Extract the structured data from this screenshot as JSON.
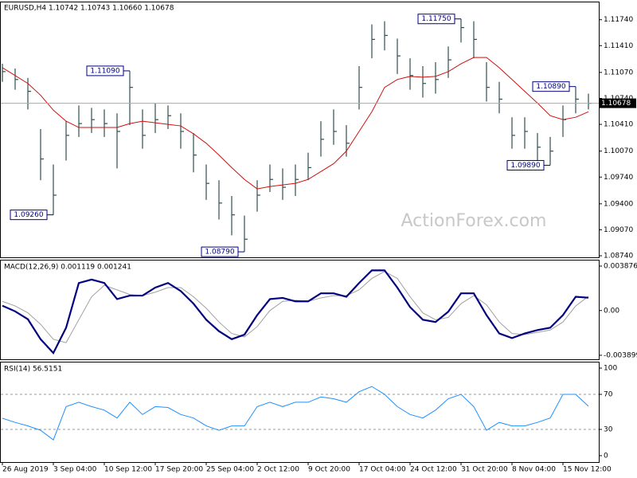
{
  "chart_data": [
    {
      "type": "hlc",
      "title": "EURUSD,H4 1.10742 1.10743 1.10660 1.10678",
      "watermark": "ActionForex.com",
      "color": "#2f4f4f",
      "high": [
        1.1118,
        1.1112,
        1.11,
        1.1035,
        1.099,
        1.1045,
        1.1065,
        1.1062,
        1.106,
        1.1055,
        1.1109,
        1.106,
        1.1068,
        1.1065,
        1.1055,
        1.103,
        1.099,
        1.097,
        1.095,
        1.0925,
        1.097,
        1.099,
        1.0985,
        1.099,
        1.1005,
        1.1045,
        1.106,
        1.104,
        1.1115,
        1.1168,
        1.1172,
        1.115,
        1.1125,
        1.1115,
        1.112,
        1.114,
        1.1175,
        1.1172,
        1.112,
        1.1095,
        1.105,
        1.105,
        1.103,
        1.1025,
        1.1065,
        1.1089,
        1.108
      ],
      "low": [
        1.1095,
        1.1085,
        1.106,
        1.097,
        1.0926,
        1.0995,
        1.1025,
        1.103,
        1.1025,
        1.0985,
        1.104,
        1.101,
        1.103,
        1.1035,
        1.101,
        1.098,
        1.0945,
        1.092,
        1.09,
        1.0879,
        1.093,
        1.0955,
        1.0945,
        1.095,
        1.097,
        1.1,
        1.1015,
        1.1,
        1.106,
        1.1125,
        1.1135,
        1.1105,
        1.1085,
        1.1075,
        1.108,
        1.11,
        1.1145,
        1.1125,
        1.107,
        1.1055,
        1.101,
        1.101,
        1.0995,
        1.0989,
        1.1025,
        1.1055,
        1.106
      ],
      "close": [
        1.1108,
        1.1098,
        1.1083,
        1.0997,
        1.0951,
        1.1027,
        1.1042,
        1.1047,
        1.1042,
        1.1032,
        1.1088,
        1.1027,
        1.1047,
        1.1052,
        1.1032,
        1.1002,
        1.0966,
        1.0941,
        1.0926,
        1.0895,
        1.0951,
        1.0971,
        1.0961,
        1.0971,
        1.0986,
        1.1022,
        1.1032,
        1.1017,
        1.1088,
        1.1149,
        1.1154,
        1.1128,
        1.1103,
        1.1093,
        1.1098,
        1.1123,
        1.1164,
        1.1149,
        1.1088,
        1.1073,
        1.1027,
        1.1032,
        1.1012,
        1.1007,
        1.1047,
        1.1073,
        1.10678
      ],
      "ma": {
        "color": "#d01010",
        "values": [
          1.1113,
          1.1103,
          1.1093,
          1.1078,
          1.1059,
          1.1045,
          1.1037,
          1.1037,
          1.1037,
          1.1037,
          1.1042,
          1.1045,
          1.1043,
          1.1041,
          1.1039,
          1.1029,
          1.1017,
          1.1002,
          1.0986,
          1.0971,
          1.0959,
          1.0962,
          1.0964,
          1.0966,
          1.0971,
          1.0981,
          1.0991,
          1.1007,
          1.1032,
          1.1057,
          1.1088,
          1.1098,
          1.1102,
          1.1101,
          1.1102,
          1.1108,
          1.1118,
          1.1126,
          1.1126,
          1.1113,
          1.1098,
          1.1083,
          1.1068,
          1.1052,
          1.1047,
          1.105,
          1.1057
        ]
      },
      "ylim": [
        1.0872,
        1.1196
      ],
      "yticks": [
        {
          "value": 1.1174,
          "label": "1.11740"
        },
        {
          "value": 1.1141,
          "label": "1.11410"
        },
        {
          "value": 1.1107,
          "label": "1.11070"
        },
        {
          "value": 1.1074,
          "label": "1.10740"
        },
        {
          "value": 1.1041,
          "label": "1.10410"
        },
        {
          "value": 1.1007,
          "label": "1.10070"
        },
        {
          "value": 1.0974,
          "label": "1.09740"
        },
        {
          "value": 1.094,
          "label": "1.09400"
        },
        {
          "value": 1.0907,
          "label": "1.09070"
        },
        {
          "value": 1.0874,
          "label": "1.08740"
        }
      ],
      "last": {
        "value": 1.10678,
        "label": "1.10678"
      },
      "annotations": [
        {
          "at": 10,
          "value": 1.1109,
          "label": "1.11090"
        },
        {
          "at": 4,
          "value": 1.0926,
          "label": "1.09260"
        },
        {
          "at": 19,
          "value": 1.0879,
          "label": "1.08790"
        },
        {
          "at": 36,
          "value": 1.1175,
          "label": "1.11750"
        },
        {
          "at": 45,
          "value": 1.1089,
          "label": "1.10890"
        },
        {
          "at": 43,
          "value": 1.0989,
          "label": "1.09890"
        }
      ]
    },
    {
      "type": "line",
      "title": "MACD(12,26,9) 0.001119 0.001241",
      "series": [
        {
          "color": "#000080",
          "width": 2.2,
          "values": [
            0.00042,
            -7e-05,
            -0.00076,
            -0.0025,
            -0.0037,
            -0.0015,
            0.0024,
            0.0027,
            0.0024,
            0.001,
            0.0013,
            0.0013,
            0.002,
            0.0024,
            0.0017,
            0.0006,
            -0.0008,
            -0.0018,
            -0.0025,
            -0.0021,
            -0.0004,
            0.001,
            0.0011,
            0.0008,
            0.0008,
            0.0015,
            0.0015,
            0.0012,
            0.0024,
            0.0035,
            0.0035,
            0.002,
            0.0003,
            -0.0008,
            -0.001,
            -0.0001,
            0.0015,
            0.0015,
            -0.0004,
            -0.002,
            -0.0024,
            -0.002,
            -0.0017,
            -0.0015,
            -0.0004,
            0.0012,
            0.001119
          ]
        },
        {
          "color": "#a0a0a0",
          "width": 1,
          "values": [
            0.0008,
            0.0004,
            -0.0002,
            -0.0012,
            -0.0025,
            -0.0028,
            -0.0008,
            0.0012,
            0.0022,
            0.0018,
            0.0014,
            0.0013,
            0.0016,
            0.002,
            0.002,
            0.0012,
            0.0002,
            -0.001,
            -0.002,
            -0.0023,
            -0.0014,
            0.0,
            0.0008,
            0.0009,
            0.0008,
            0.0011,
            0.0013,
            0.0013,
            0.0018,
            0.0028,
            0.0034,
            0.0028,
            0.0012,
            -0.0002,
            -0.0008,
            -0.0006,
            0.0006,
            0.0013,
            0.0005,
            -0.001,
            -0.002,
            -0.0021,
            -0.0019,
            -0.0017,
            -0.001,
            0.0004,
            0.001241
          ]
        }
      ],
      "ylim": [
        -0.00425,
        0.00436
      ],
      "yticks": [
        0.003876,
        {
          "value": 0,
          "label": "0.00"
        },
        -0.003899
      ]
    },
    {
      "type": "line",
      "title": "RSI(14) 56.5151",
      "categories": [
        "26 Aug 2019",
        null,
        null,
        null,
        "3 Sep 04:00",
        null,
        null,
        null,
        "10 Sep 12:00",
        null,
        null,
        null,
        "17 Sep 20:00",
        null,
        null,
        null,
        "25 Sep 04:00",
        null,
        null,
        null,
        "2 Oct 12:00",
        null,
        null,
        null,
        "9 Oct 20:00",
        null,
        null,
        null,
        "17 Oct 04:00",
        null,
        null,
        null,
        "24 Oct 12:00",
        null,
        null,
        null,
        "31 Oct 20:00",
        null,
        null,
        null,
        "8 Nov 04:00",
        null,
        null,
        null,
        "15 Nov 12:00",
        null,
        null
      ],
      "series": [
        {
          "color": "#1e90ff",
          "width": 1,
          "values": [
            42.7,
            38,
            34,
            29,
            18,
            56,
            61,
            56,
            52,
            43,
            61,
            47,
            56,
            55,
            47,
            43,
            34,
            29,
            34,
            34,
            56,
            61,
            56,
            61,
            61,
            67,
            65,
            61,
            73,
            79,
            70,
            56,
            47,
            43,
            52,
            65,
            70,
            56,
            29,
            38,
            34,
            34,
            38,
            43,
            70,
            70,
            56.5151
          ]
        }
      ],
      "ylim": [
        -7.3,
        106.4
      ],
      "yticks": [
        100,
        70,
        30,
        0
      ],
      "levels": [
        70,
        30
      ]
    }
  ]
}
